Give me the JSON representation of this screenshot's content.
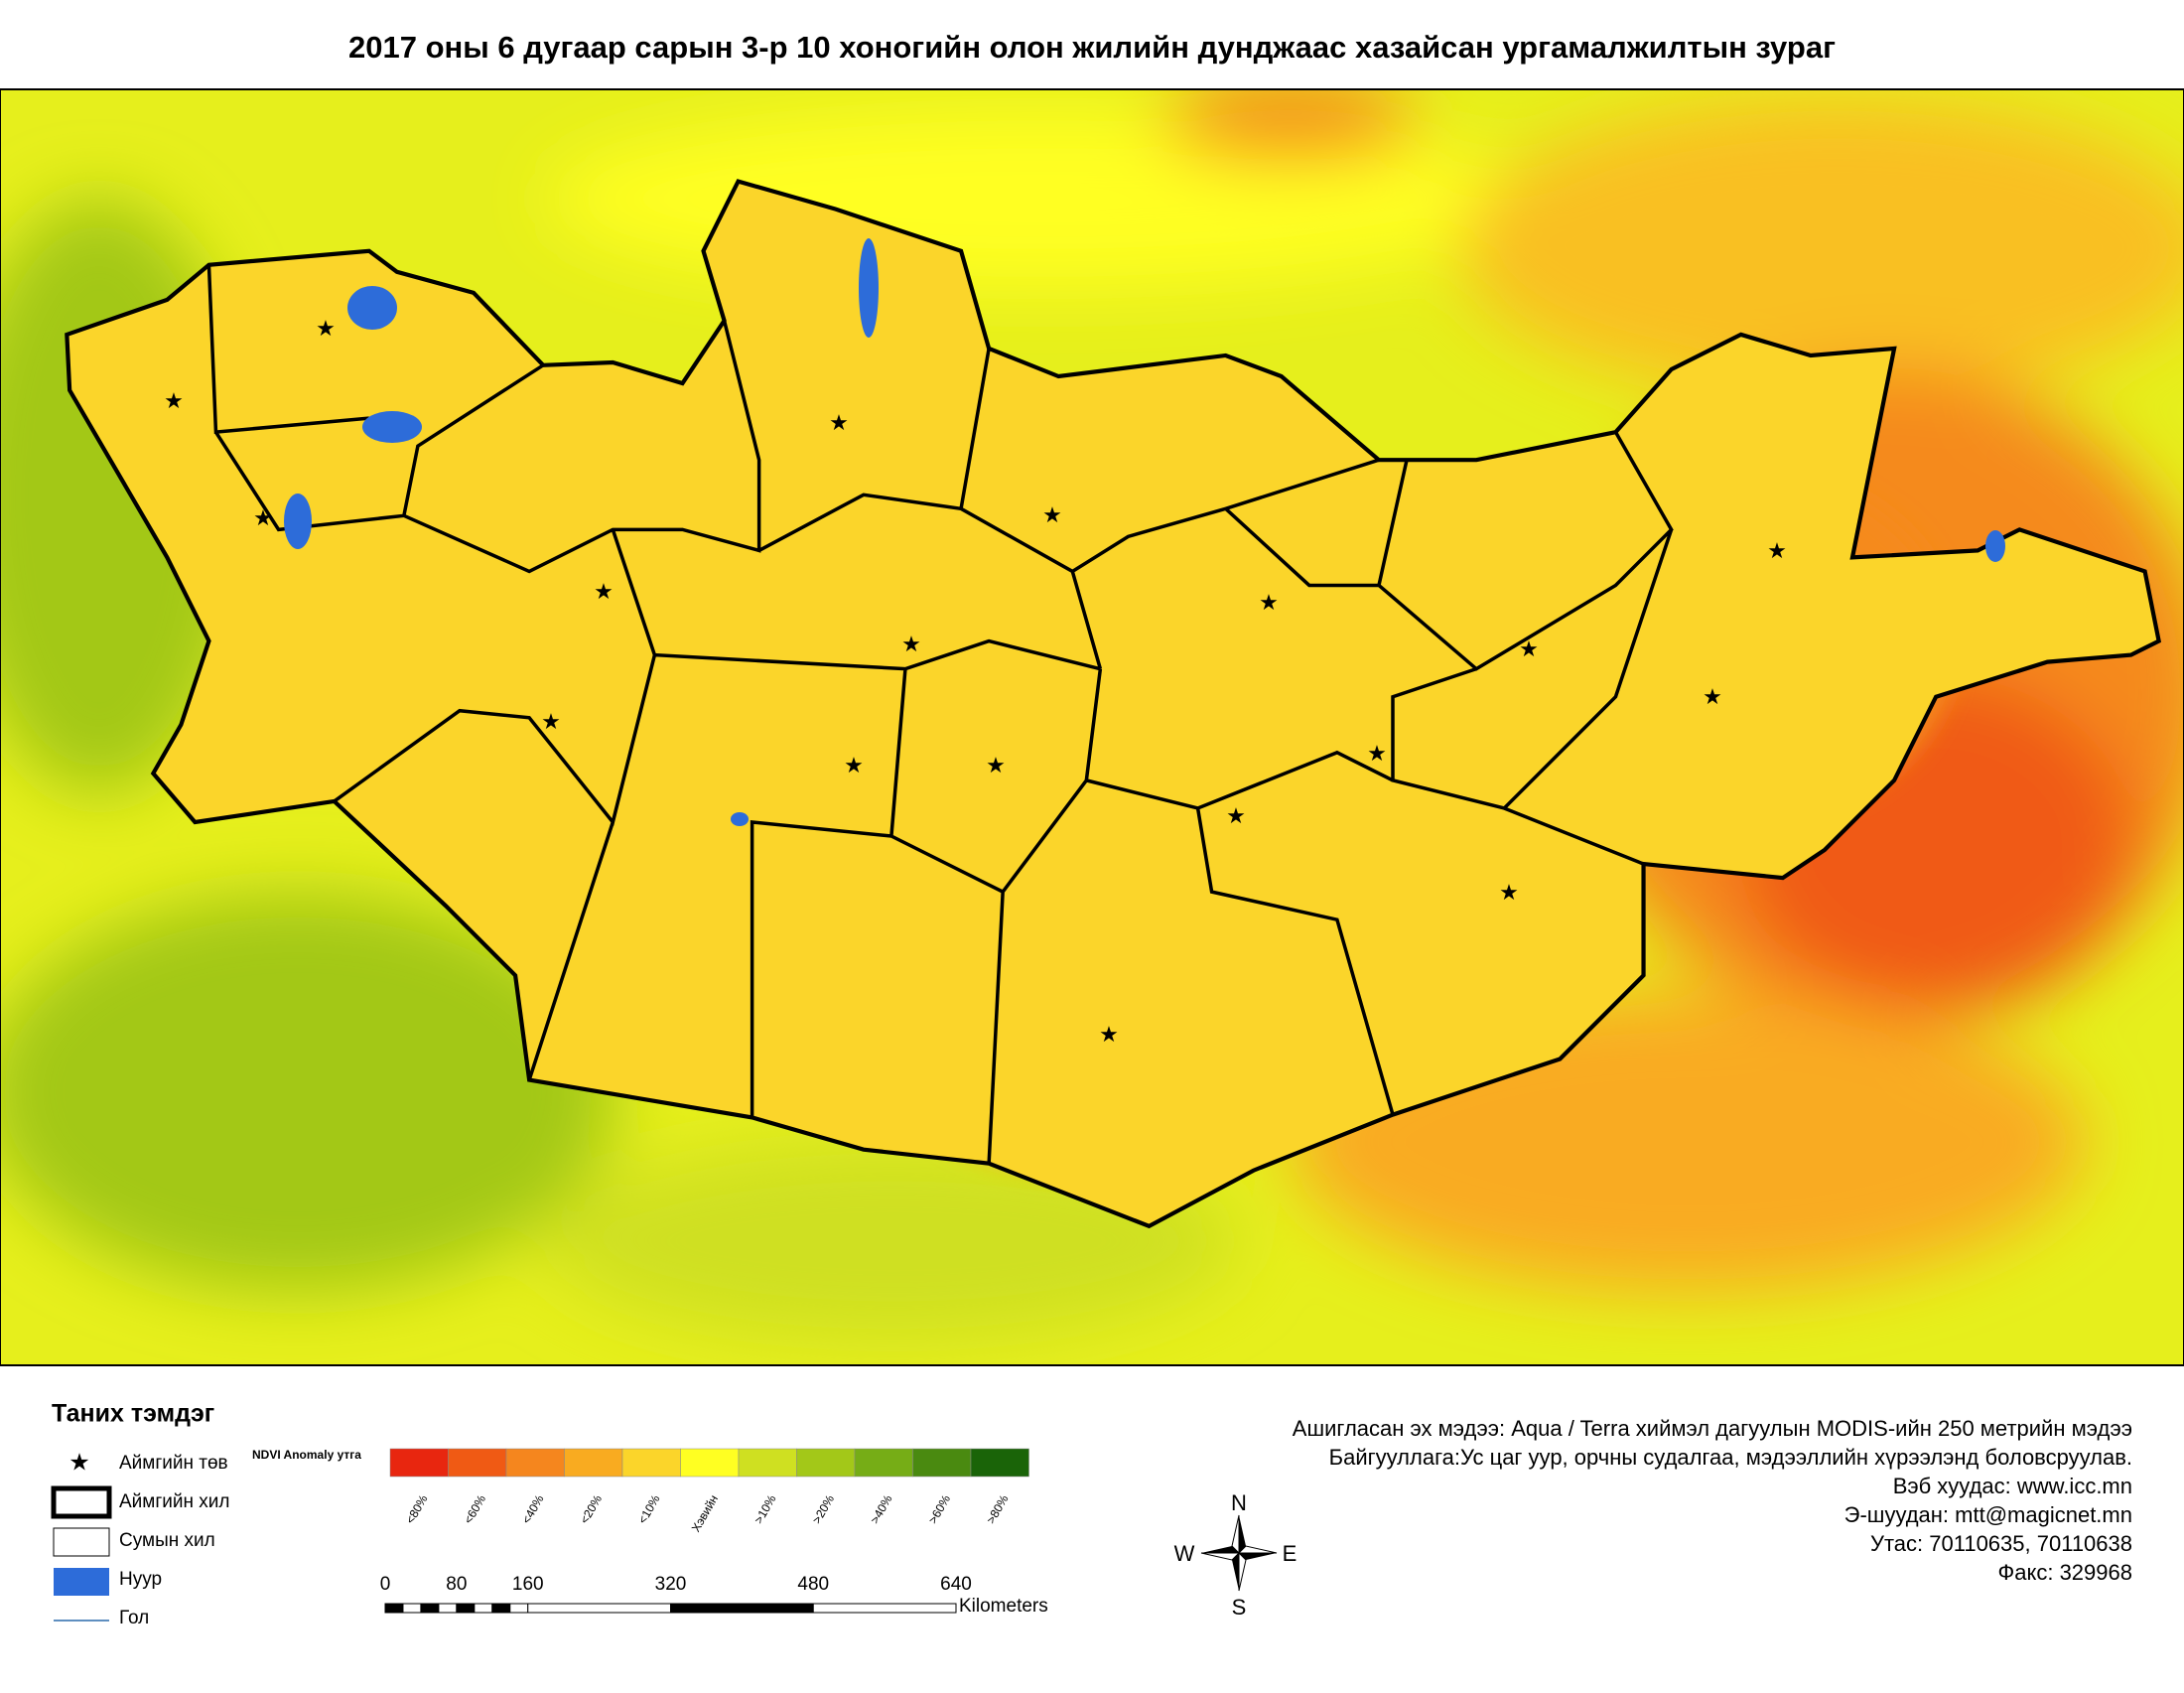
{
  "title": "2017 оны 6 дугаар сарын  3-р 10 хоногийн олон жилийн дунджаас хазайсан ургамалжилтын зураг",
  "legend": {
    "title": "Таних тэмдэг",
    "items": [
      "Аймгийн төв",
      "Аймгийн хил",
      "Сумын хил",
      "Нуур",
      "Гол"
    ],
    "ndvi_label": "NDVI Anomaly утга",
    "classes": [
      {
        "label": "<80%",
        "color": "#e8260f"
      },
      {
        "label": "<60%",
        "color": "#f05a14"
      },
      {
        "label": "<40%",
        "color": "#f5861e"
      },
      {
        "label": "<20%",
        "color": "#f9ab20"
      },
      {
        "label": "<10%",
        "color": "#fbd52a"
      },
      {
        "label": "Хэвийн",
        "color": "#ffff22"
      },
      {
        "label": ">10%",
        "color": "#cfe021"
      },
      {
        "label": ">20%",
        "color": "#a3c818"
      },
      {
        "label": ">40%",
        "color": "#76ad16"
      },
      {
        "label": ">60%",
        "color": "#4a8a10"
      },
      {
        "label": ">80%",
        "color": "#1a6408"
      }
    ]
  },
  "scale_bar": {
    "ticks": [
      0,
      80,
      160,
      320,
      480,
      640
    ],
    "unit": "Kilometers"
  },
  "compass": {
    "n": "N",
    "s": "S",
    "e": "E",
    "w": "W"
  },
  "credits": [
    "Ашигласан эх мэдээ: Aqua / Terra хиймэл дагуулын MODIS-ийн 250 метрийн мэдээ",
    "Байгууллага:Ус цаг уур, орчны судалгаа, мэдээллийн хүрээлэнд боловсруулав.",
    "Вэб хуудас: www.icc.mn",
    "Э-шуудан: mtt@magicnet.mn",
    "Утас: 70110635, 70110638",
    "Факс: 329968"
  ]
}
